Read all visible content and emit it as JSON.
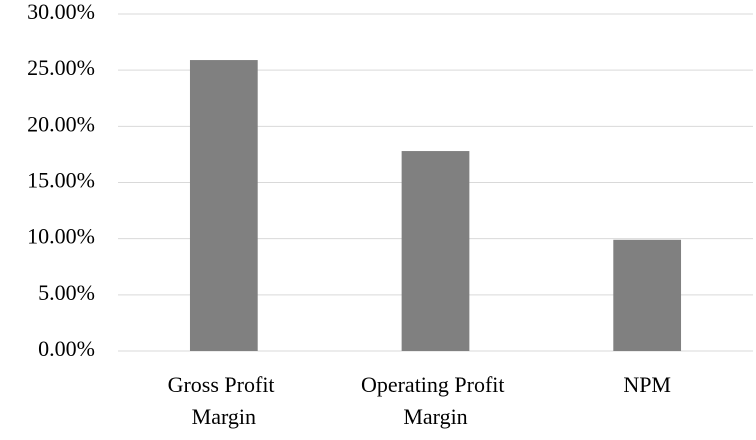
{
  "chart_data": {
    "type": "bar",
    "categories": [
      "Gross Profit Margin",
      "Operating Profit Margin",
      "NPM"
    ],
    "values": [
      25.9,
      17.8,
      9.9
    ],
    "color": "#808080",
    "ylim": [
      0,
      30
    ],
    "yticks": [
      {
        "value": 0,
        "label": "0.00%"
      },
      {
        "value": 5,
        "label": "5.00%"
      },
      {
        "value": 10,
        "label": "10.00%"
      },
      {
        "value": 15,
        "label": "15.00%"
      },
      {
        "value": 20,
        "label": "20.00%"
      },
      {
        "value": 25,
        "label": "25.00%"
      },
      {
        "value": 30,
        "label": "30.00%"
      }
    ],
    "grid": true
  }
}
